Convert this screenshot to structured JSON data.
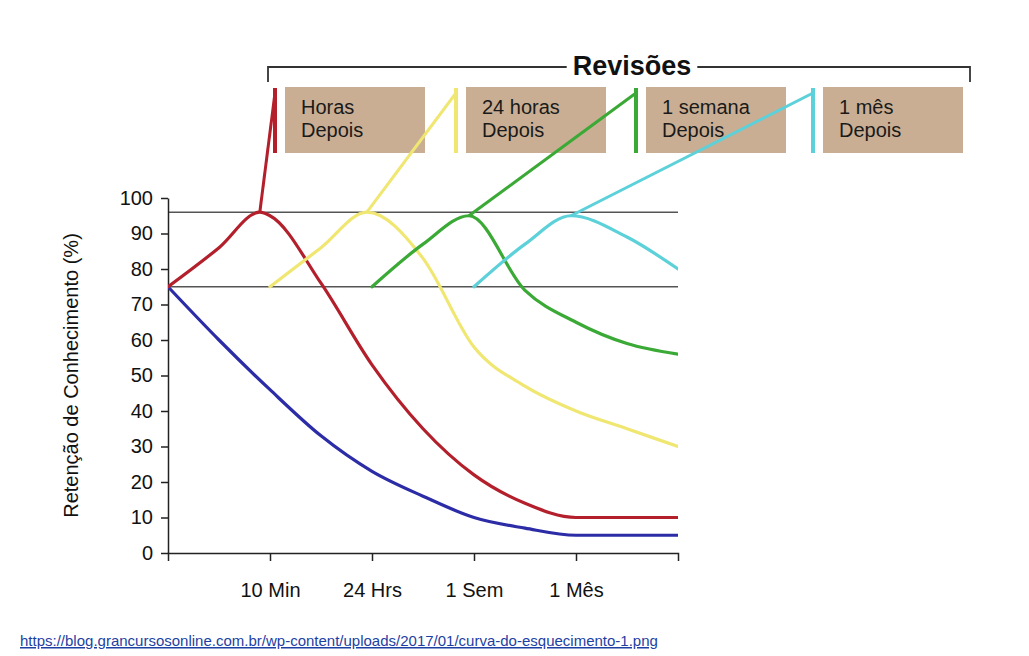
{
  "chart_data": {
    "type": "line",
    "title": "Revisões",
    "y_label": "Retenção de Conhecimento (%)",
    "source": "https://blog.grancursosonline.com.br/wp-content/uploads/2017/01/curva-do-esquecimento-1.png",
    "xlim": [
      0,
      5
    ],
    "xticks": [
      {
        "value": 1,
        "label": "10 Min"
      },
      {
        "value": 2,
        "label": "24 Hrs"
      },
      {
        "value": 3,
        "label": "1 Sem"
      },
      {
        "value": 4,
        "label": "1 Mês"
      }
    ],
    "ylim": [
      0,
      100
    ],
    "yticks": [
      0,
      10,
      20,
      30,
      40,
      50,
      60,
      70,
      80,
      90,
      100
    ],
    "grid": false,
    "reference_lines": [
      96,
      75
    ],
    "series": [
      {
        "color": "#2b2ca6",
        "x": [
          0,
          0.5,
          1,
          1.5,
          2,
          2.5,
          3,
          3.5,
          4,
          4.5,
          5
        ],
        "values": [
          75,
          60,
          46,
          33,
          23,
          16,
          10,
          7,
          5,
          5,
          5
        ]
      },
      {
        "color": "#b3202c",
        "annotation": [
          "Horas",
          "Depois"
        ],
        "x": [
          0,
          0.5,
          0.9,
          1,
          1.5,
          2,
          2.5,
          3,
          3.5,
          4,
          4.5,
          5
        ],
        "values": [
          75,
          86,
          96,
          95,
          76,
          53,
          35,
          22,
          14,
          10,
          10,
          10
        ]
      },
      {
        "color": "#f0e772",
        "annotation": [
          "24 horas",
          "Depois"
        ],
        "x": [
          1,
          1.5,
          1.95,
          2.5,
          3,
          3.5,
          4,
          4.5,
          5
        ],
        "values": [
          75,
          86,
          96,
          83,
          58,
          47,
          40,
          35,
          30
        ]
      },
      {
        "color": "#3aa935",
        "annotation": [
          "1 semana",
          "Depois"
        ],
        "x": [
          2,
          2.5,
          2.95,
          3.5,
          4,
          4.5,
          5
        ],
        "values": [
          75,
          87,
          95,
          74,
          65,
          59,
          56
        ]
      },
      {
        "color": "#5dd1d9",
        "annotation": [
          "1 mês",
          "Depois"
        ],
        "x": [
          3,
          3.5,
          3.95,
          4.5,
          5
        ],
        "values": [
          75,
          87,
          95,
          89,
          80
        ]
      }
    ]
  }
}
